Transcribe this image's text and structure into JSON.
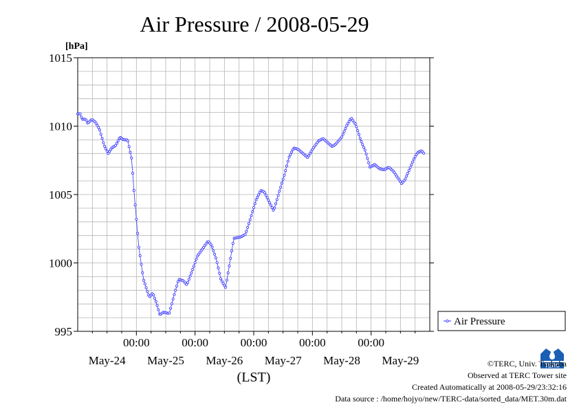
{
  "chart_data": {
    "type": "line",
    "title": "Air Pressure / 2008-05-29",
    "ylabel_unit": "[hPa]",
    "xlabel": "(LST)",
    "ylim": [
      995,
      1015
    ],
    "yticks": [
      "995",
      "1000",
      "1005",
      "1010",
      "1015"
    ],
    "xlim_days": [
      0,
      6
    ],
    "xticks": [
      {
        "day": 1,
        "label": "00:00"
      },
      {
        "day": 2,
        "label": "00:00"
      },
      {
        "day": 3,
        "label": "00:00"
      },
      {
        "day": 4,
        "label": "00:00"
      },
      {
        "day": 5,
        "label": "00:00"
      }
    ],
    "day_labels": [
      "May-24",
      "May-25",
      "May-26",
      "May-27",
      "May-28",
      "May-29"
    ],
    "grid": true,
    "legend_position": "right",
    "series": [
      {
        "name": "Air Pressure",
        "color": "#3333ff",
        "anchors": [
          [
            0.0,
            1010.9
          ],
          [
            0.05,
            1010.9
          ],
          [
            0.07,
            1010.5
          ],
          [
            0.14,
            1010.5
          ],
          [
            0.17,
            1010.2
          ],
          [
            0.24,
            1010.5
          ],
          [
            0.3,
            1010.3
          ],
          [
            0.37,
            1009.8
          ],
          [
            0.45,
            1008.6
          ],
          [
            0.52,
            1008.0
          ],
          [
            0.58,
            1008.4
          ],
          [
            0.65,
            1008.6
          ],
          [
            0.72,
            1009.2
          ],
          [
            0.78,
            1009.0
          ],
          [
            0.85,
            1009.0
          ],
          [
            0.92,
            1007.6
          ],
          [
            0.96,
            1005.2
          ],
          [
            1.04,
            1001.2
          ],
          [
            1.12,
            998.8
          ],
          [
            1.22,
            997.5
          ],
          [
            1.28,
            997.8
          ],
          [
            1.34,
            997.1
          ],
          [
            1.4,
            996.2
          ],
          [
            1.46,
            996.4
          ],
          [
            1.56,
            996.3
          ],
          [
            1.64,
            997.6
          ],
          [
            1.72,
            998.8
          ],
          [
            1.8,
            998.7
          ],
          [
            1.86,
            998.4
          ],
          [
            1.94,
            999.3
          ],
          [
            2.04,
            1000.5
          ],
          [
            2.14,
            1001.1
          ],
          [
            2.22,
            1001.6
          ],
          [
            2.28,
            1001.3
          ],
          [
            2.36,
            1000.3
          ],
          [
            2.44,
            998.8
          ],
          [
            2.52,
            998.2
          ],
          [
            2.58,
            999.7
          ],
          [
            2.66,
            1001.8
          ],
          [
            2.78,
            1001.9
          ],
          [
            2.86,
            1002.1
          ],
          [
            2.94,
            1003.2
          ],
          [
            3.04,
            1004.6
          ],
          [
            3.12,
            1005.3
          ],
          [
            3.18,
            1005.2
          ],
          [
            3.26,
            1004.5
          ],
          [
            3.34,
            1003.8
          ],
          [
            3.42,
            1005.0
          ],
          [
            3.52,
            1006.4
          ],
          [
            3.6,
            1007.7
          ],
          [
            3.68,
            1008.4
          ],
          [
            3.76,
            1008.3
          ],
          [
            3.84,
            1008.0
          ],
          [
            3.92,
            1007.7
          ],
          [
            4.0,
            1008.3
          ],
          [
            4.1,
            1008.9
          ],
          [
            4.18,
            1009.1
          ],
          [
            4.26,
            1008.8
          ],
          [
            4.34,
            1008.5
          ],
          [
            4.4,
            1008.7
          ],
          [
            4.5,
            1009.2
          ],
          [
            4.58,
            1010.0
          ],
          [
            4.66,
            1010.6
          ],
          [
            4.74,
            1010.1
          ],
          [
            4.82,
            1009.0
          ],
          [
            4.9,
            1008.2
          ],
          [
            4.98,
            1007.0
          ],
          [
            5.06,
            1007.2
          ],
          [
            5.14,
            1006.9
          ],
          [
            5.22,
            1006.8
          ],
          [
            5.3,
            1007.0
          ],
          [
            5.38,
            1006.7
          ],
          [
            5.46,
            1006.2
          ],
          [
            5.52,
            1005.8
          ],
          [
            5.58,
            1006.1
          ],
          [
            5.66,
            1006.9
          ],
          [
            5.74,
            1007.7
          ],
          [
            5.8,
            1008.1
          ],
          [
            5.86,
            1008.2
          ],
          [
            5.9,
            1008.0
          ]
        ]
      }
    ]
  },
  "credits": {
    "copyright": "©TERC, Univ. Tsukuba",
    "observed": "Observed at TERC Tower site",
    "created": "Created Automatically at 2008-05-29/23:32:16",
    "source": "Data source : /home/hojyo/new/TERC-data/sorted_data/MET.30m.dat",
    "logo_text": "TERC"
  }
}
